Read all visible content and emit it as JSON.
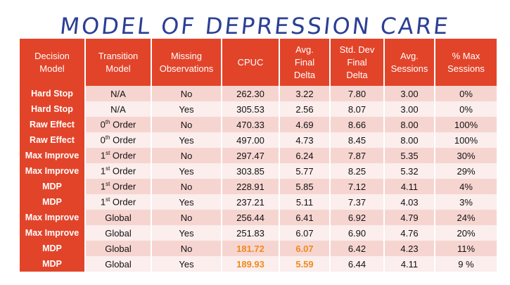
{
  "title": "MODEL OF DEPRESSION CARE",
  "headers": [
    [
      "Decision",
      "Model"
    ],
    [
      "Transition",
      "Model"
    ],
    [
      "Missing",
      "Observations"
    ],
    [
      "CPUC"
    ],
    [
      "Avg.",
      "Final",
      "Delta"
    ],
    [
      "Std. Dev",
      "Final",
      "Delta"
    ],
    [
      "Avg.",
      "Sessions"
    ],
    [
      "% Max",
      "Sessions"
    ]
  ],
  "rows": [
    {
      "model": "Hard Stop",
      "transition": "N/A",
      "sup": "",
      "missing": "No",
      "cpuc": "262.30",
      "avg_delta": "3.22",
      "std_delta": "7.80",
      "avg_sessions": "3.00",
      "pct_max": "0%"
    },
    {
      "model": "Hard Stop",
      "transition": "N/A",
      "sup": "",
      "missing": "Yes",
      "cpuc": "305.53",
      "avg_delta": "2.56",
      "std_delta": "8.07",
      "avg_sessions": "3.00",
      "pct_max": "0%"
    },
    {
      "model": "Raw Effect",
      "transition": "0",
      "sup": "th",
      "suffix": " Order",
      "missing": "No",
      "cpuc": "470.33",
      "avg_delta": "4.69",
      "std_delta": "8.66",
      "avg_sessions": "8.00",
      "pct_max": "100%"
    },
    {
      "model": "Raw Effect",
      "transition": "0",
      "sup": "th",
      "suffix": " Order",
      "missing": "Yes",
      "cpuc": "497.00",
      "avg_delta": "4.73",
      "std_delta": "8.45",
      "avg_sessions": "8.00",
      "pct_max": "100%"
    },
    {
      "model": "Max Improve",
      "transition": "1",
      "sup": "st",
      "suffix": " Order",
      "missing": "No",
      "cpuc": "297.47",
      "avg_delta": "6.24",
      "std_delta": "7.87",
      "avg_sessions": "5.35",
      "pct_max": "30%"
    },
    {
      "model": "Max Improve",
      "transition": "1",
      "sup": "st",
      "suffix": " Order",
      "missing": "Yes",
      "cpuc": "303.85",
      "avg_delta": "5.77",
      "std_delta": "8.25",
      "avg_sessions": "5.32",
      "pct_max": "29%"
    },
    {
      "model": "MDP",
      "transition": "1",
      "sup": "st",
      "suffix": " Order",
      "missing": "No",
      "cpuc": "228.91",
      "avg_delta": "5.85",
      "std_delta": "7.12",
      "avg_sessions": "4.11",
      "pct_max": "4%"
    },
    {
      "model": "MDP",
      "transition": "1",
      "sup": "st",
      "suffix": " Order",
      "missing": "Yes",
      "cpuc": "237.21",
      "avg_delta": "5.11",
      "std_delta": "7.37",
      "avg_sessions": "4.03",
      "pct_max": "3%"
    },
    {
      "model": "Max Improve",
      "transition": "Global",
      "sup": "",
      "missing": "No",
      "cpuc": "256.44",
      "avg_delta": "6.41",
      "std_delta": "6.92",
      "avg_sessions": "4.79",
      "pct_max": "24%"
    },
    {
      "model": "Max Improve",
      "transition": "Global",
      "sup": "",
      "missing": "Yes",
      "cpuc": "251.83",
      "avg_delta": "6.07",
      "std_delta": "6.90",
      "avg_sessions": "4.76",
      "pct_max": "20%"
    },
    {
      "model": "MDP",
      "transition": "Global",
      "sup": "",
      "missing": "No",
      "cpuc": "181.72",
      "avg_delta": "6.07",
      "std_delta": "6.42",
      "avg_sessions": "4.23",
      "pct_max": "11%",
      "highlight": true
    },
    {
      "model": "MDP",
      "transition": "Global",
      "sup": "",
      "missing": "Yes",
      "cpuc": "189.93",
      "avg_delta": "5.59",
      "std_delta": "6.44",
      "avg_sessions": "4.11",
      "pct_max": "9 %",
      "highlight": true
    }
  ],
  "colors": {
    "header": "#e2442a",
    "highlight": "#f08a1c",
    "title": "#2b3f94"
  }
}
